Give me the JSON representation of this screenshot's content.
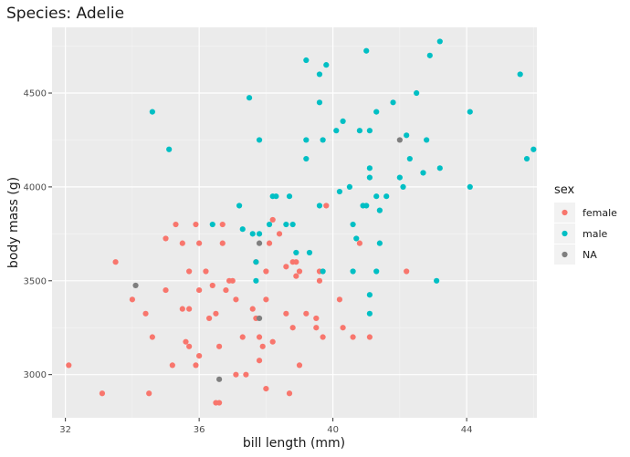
{
  "chart_data": {
    "type": "scatter",
    "title": "Species: Adelie",
    "xlabel": "bill length (mm)",
    "ylabel": "body mass (g)",
    "xlim": [
      31.6,
      46.1
    ],
    "ylim": [
      2770,
      4850
    ],
    "x_ticks": [
      32,
      36,
      40,
      44
    ],
    "x_tick_labels": [
      "32",
      "36",
      "40",
      "44"
    ],
    "y_ticks": [
      3000,
      3500,
      4000,
      4500
    ],
    "y_tick_labels": [
      "3000",
      "3500",
      "4000",
      "4500"
    ],
    "grid": true,
    "panel_background": "#ebebeb",
    "legend": {
      "title": "sex",
      "position": "right",
      "entries": [
        "female",
        "male",
        "NA"
      ]
    },
    "series": [
      {
        "name": "female",
        "color": "#f8766d",
        "points": [
          [
            32.1,
            3050
          ],
          [
            33.1,
            2900
          ],
          [
            33.5,
            3600
          ],
          [
            34.0,
            3400
          ],
          [
            34.4,
            3325
          ],
          [
            34.5,
            2900
          ],
          [
            34.6,
            3200
          ],
          [
            35.0,
            3725
          ],
          [
            35.0,
            3450
          ],
          [
            35.2,
            3050
          ],
          [
            35.3,
            3800
          ],
          [
            35.5,
            3700
          ],
          [
            35.5,
            3350
          ],
          [
            35.6,
            3175
          ],
          [
            35.7,
            3550
          ],
          [
            35.7,
            3350
          ],
          [
            35.7,
            3150
          ],
          [
            35.9,
            3050
          ],
          [
            35.9,
            3800
          ],
          [
            36.0,
            3450
          ],
          [
            36.0,
            3100
          ],
          [
            36.0,
            3700
          ],
          [
            36.2,
            3550
          ],
          [
            36.3,
            3300
          ],
          [
            36.4,
            3475
          ],
          [
            36.5,
            3325
          ],
          [
            36.6,
            3150
          ],
          [
            36.5,
            2850
          ],
          [
            36.6,
            2850
          ],
          [
            36.7,
            3700
          ],
          [
            36.7,
            3800
          ],
          [
            36.8,
            3450
          ],
          [
            36.9,
            3500
          ],
          [
            37.0,
            3500
          ],
          [
            37.1,
            3400
          ],
          [
            37.1,
            3000
          ],
          [
            37.3,
            3200
          ],
          [
            37.4,
            3000
          ],
          [
            37.6,
            3350
          ],
          [
            37.7,
            3600
          ],
          [
            37.7,
            3300
          ],
          [
            37.8,
            3075
          ],
          [
            37.8,
            3200
          ],
          [
            37.9,
            3150
          ],
          [
            38.0,
            3550
          ],
          [
            38.0,
            3400
          ],
          [
            38.0,
            2925
          ],
          [
            38.1,
            3700
          ],
          [
            38.2,
            3825
          ],
          [
            38.2,
            3175
          ],
          [
            38.4,
            3750
          ],
          [
            38.6,
            3325
          ],
          [
            38.6,
            3575
          ],
          [
            38.7,
            2900
          ],
          [
            38.8,
            3600
          ],
          [
            38.8,
            3250
          ],
          [
            38.9,
            3600
          ],
          [
            38.9,
            3525
          ],
          [
            39.0,
            3550
          ],
          [
            39.0,
            3050
          ],
          [
            39.2,
            3325
          ],
          [
            39.5,
            3300
          ],
          [
            39.5,
            3250
          ],
          [
            39.6,
            3500
          ],
          [
            39.6,
            3550
          ],
          [
            39.7,
            3200
          ],
          [
            39.8,
            3900
          ],
          [
            40.2,
            3400
          ],
          [
            40.3,
            3250
          ],
          [
            40.6,
            3200
          ],
          [
            40.8,
            3700
          ],
          [
            41.1,
            3200
          ],
          [
            42.2,
            3550
          ]
        ]
      },
      {
        "name": "male",
        "color": "#00bfc4",
        "points": [
          [
            34.6,
            4400
          ],
          [
            35.1,
            4200
          ],
          [
            36.4,
            3800
          ],
          [
            37.2,
            3900
          ],
          [
            37.3,
            3775
          ],
          [
            37.5,
            4475
          ],
          [
            37.6,
            3750
          ],
          [
            37.7,
            3600
          ],
          [
            37.7,
            3500
          ],
          [
            37.8,
            4250
          ],
          [
            37.8,
            3750
          ],
          [
            38.1,
            3800
          ],
          [
            38.2,
            3950
          ],
          [
            38.3,
            3950
          ],
          [
            38.6,
            3800
          ],
          [
            38.7,
            3950
          ],
          [
            38.8,
            3800
          ],
          [
            38.9,
            3650
          ],
          [
            39.2,
            4150
          ],
          [
            39.2,
            4675
          ],
          [
            39.2,
            4250
          ],
          [
            39.3,
            3650
          ],
          [
            39.6,
            3900
          ],
          [
            39.6,
            4600
          ],
          [
            39.6,
            4450
          ],
          [
            39.7,
            3550
          ],
          [
            39.7,
            4250
          ],
          [
            39.8,
            4650
          ],
          [
            40.1,
            4300
          ],
          [
            40.2,
            3975
          ],
          [
            40.3,
            4350
          ],
          [
            40.5,
            4000
          ],
          [
            40.6,
            3800
          ],
          [
            40.6,
            3550
          ],
          [
            40.7,
            3725
          ],
          [
            40.8,
            4300
          ],
          [
            40.9,
            3900
          ],
          [
            41.0,
            3900
          ],
          [
            41.0,
            4725
          ],
          [
            41.1,
            4300
          ],
          [
            41.1,
            4100
          ],
          [
            41.1,
            4050
          ],
          [
            41.1,
            3425
          ],
          [
            41.1,
            3325
          ],
          [
            41.3,
            4400
          ],
          [
            41.3,
            3950
          ],
          [
            41.3,
            3550
          ],
          [
            41.4,
            3875
          ],
          [
            41.4,
            3700
          ],
          [
            41.6,
            3950
          ],
          [
            41.8,
            4450
          ],
          [
            42.0,
            4050
          ],
          [
            42.1,
            4000
          ],
          [
            42.2,
            4275
          ],
          [
            42.3,
            4150
          ],
          [
            42.5,
            4500
          ],
          [
            42.7,
            4075
          ],
          [
            42.8,
            4250
          ],
          [
            42.9,
            4700
          ],
          [
            43.1,
            3500
          ],
          [
            43.2,
            4775
          ],
          [
            43.2,
            4100
          ],
          [
            44.1,
            4400
          ],
          [
            44.1,
            4000
          ],
          [
            45.6,
            4600
          ],
          [
            45.8,
            4150
          ],
          [
            46.0,
            4200
          ]
        ]
      },
      {
        "name": "NA",
        "color": "#7f7f7f",
        "points": [
          [
            34.1,
            3475
          ],
          [
            36.6,
            2975
          ],
          [
            37.8,
            3700
          ],
          [
            37.8,
            3300
          ],
          [
            42.0,
            4250
          ]
        ]
      }
    ]
  }
}
